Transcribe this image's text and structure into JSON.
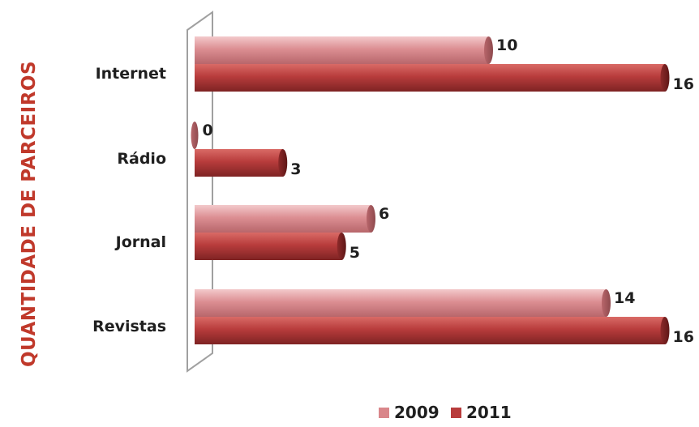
{
  "chart_data": {
    "type": "bar",
    "orientation": "horizontal",
    "categories": [
      "Internet",
      "Rádio",
      "Jornal",
      "Revistas"
    ],
    "series": [
      {
        "name": "2009",
        "values": [
          10,
          0,
          6,
          14
        ],
        "color": "#d9868a"
      },
      {
        "name": "2011",
        "values": [
          16,
          3,
          5,
          16
        ],
        "color": "#b83c3c"
      }
    ],
    "ylabel": "QUANTIDADE DE PARCEIROS",
    "xlim": [
      0,
      16
    ],
    "grid": false,
    "legend_position": "bottom-right",
    "ylabel_color": "#c0392b"
  }
}
